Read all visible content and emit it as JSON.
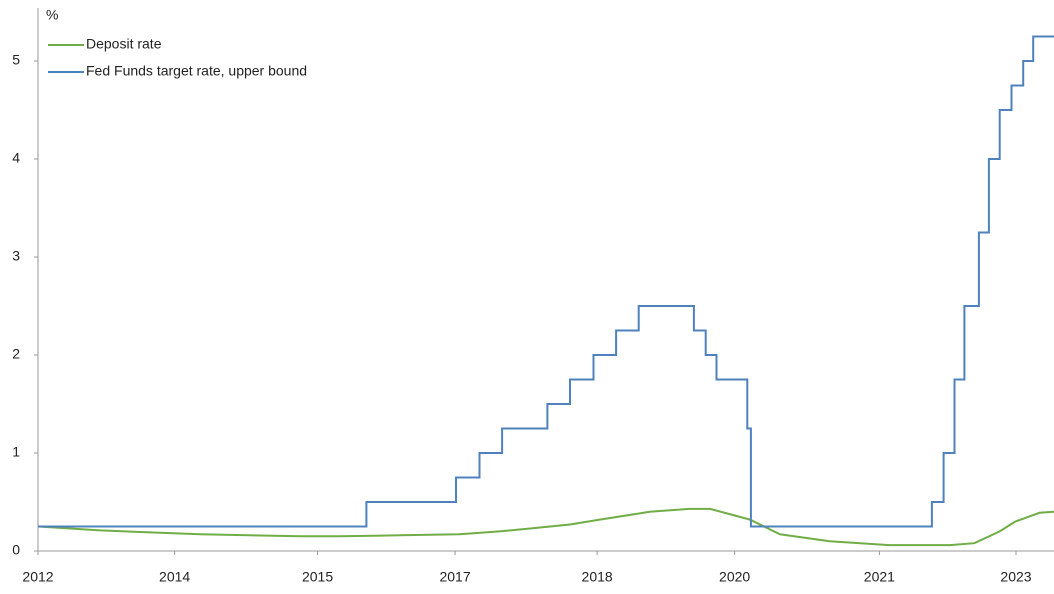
{
  "chart_data": {
    "type": "line",
    "ylabel": "%",
    "xlim": [
      2012.42,
      2023.65
    ],
    "xticks": [
      {
        "value": 2012.42,
        "label": "2012"
      },
      {
        "value": 2013.93,
        "label": "2014"
      },
      {
        "value": 2015.51,
        "label": "2015"
      },
      {
        "value": 2017.03,
        "label": "2017"
      },
      {
        "value": 2018.6,
        "label": "2018"
      },
      {
        "value": 2020.12,
        "label": "2020"
      },
      {
        "value": 2021.72,
        "label": "2021"
      },
      {
        "value": 2023.23,
        "label": "2023"
      }
    ],
    "ylim": [
      0,
      5.5
    ],
    "yticks": [
      0,
      1,
      2,
      3,
      4,
      5
    ],
    "legend": "upper left",
    "series": [
      {
        "name": "Deposit rate",
        "color": "#70ad47",
        "x": [
          2012.42,
          2013.11,
          2014.21,
          2015.32,
          2015.76,
          2016.42,
          2017.08,
          2017.52,
          2017.86,
          2018.3,
          2018.63,
          2019.18,
          2019.62,
          2019.85,
          2020.29,
          2020.62,
          2021.17,
          2021.83,
          2022.5,
          2022.77,
          2023.05,
          2023.22,
          2023.49,
          2023.65
        ],
        "values": [
          0.25,
          0.21,
          0.17,
          0.15,
          0.15,
          0.16,
          0.17,
          0.2,
          0.23,
          0.27,
          0.32,
          0.4,
          0.43,
          0.43,
          0.32,
          0.17,
          0.1,
          0.06,
          0.06,
          0.08,
          0.2,
          0.3,
          0.39,
          0.4
        ]
      },
      {
        "name": "Fed Funds target rate, upper bound",
        "color": "#4f81bd",
        "x": [
          2012.42,
          2016.05,
          2016.05,
          2017.04,
          2017.04,
          2017.3,
          2017.3,
          2017.55,
          2017.55,
          2018.05,
          2018.05,
          2018.3,
          2018.3,
          2018.56,
          2018.56,
          2018.81,
          2018.81,
          2019.06,
          2019.06,
          2019.67,
          2019.67,
          2019.8,
          2019.8,
          2019.92,
          2019.92,
          2020.26,
          2020.26,
          2020.3,
          2020.3,
          2022.3,
          2022.3,
          2022.43,
          2022.43,
          2022.55,
          2022.55,
          2022.66,
          2022.66,
          2022.82,
          2022.82,
          2022.93,
          2022.93,
          2023.05,
          2023.05,
          2023.18,
          2023.18,
          2023.31,
          2023.31,
          2023.42,
          2023.42,
          2023.65
        ],
        "values": [
          0.25,
          0.25,
          0.5,
          0.5,
          0.75,
          0.75,
          1.0,
          1.0,
          1.25,
          1.25,
          1.5,
          1.5,
          1.75,
          1.75,
          2.0,
          2.0,
          2.25,
          2.25,
          2.5,
          2.5,
          2.25,
          2.25,
          2.0,
          2.0,
          1.75,
          1.75,
          1.25,
          1.25,
          0.25,
          0.25,
          0.5,
          0.5,
          1.0,
          1.0,
          1.75,
          1.75,
          2.5,
          2.5,
          3.25,
          3.25,
          4.0,
          4.0,
          4.5,
          4.5,
          4.75,
          4.75,
          5.0,
          5.0,
          5.25,
          5.25
        ]
      }
    ]
  }
}
